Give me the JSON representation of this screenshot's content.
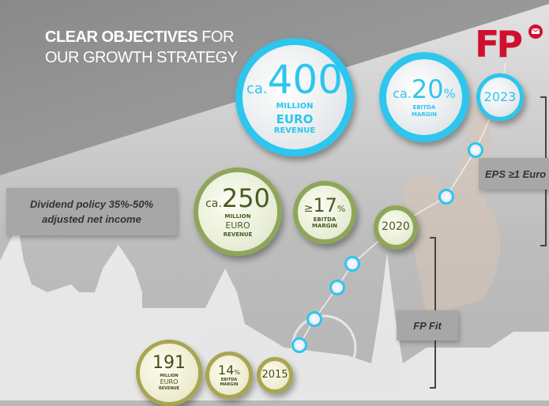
{
  "title": {
    "bold": "CLEAR OBJECTIVES",
    "rest": " FOR",
    "line2": "OUR GROWTH STRATEGY"
  },
  "logo": {
    "text": "FP",
    "icon": "envelope-icon",
    "color": "#d0102e"
  },
  "colors": {
    "blue": "#2cc6ee",
    "green": "#8fa65a",
    "gold": "#a9a650"
  },
  "goals_2023": {
    "revenue": {
      "prefix": "ca.",
      "value": "400",
      "l1": "MILLION",
      "l2": "EURO",
      "l3": "REVENUE"
    },
    "margin": {
      "prefix": "ca.",
      "value": "20",
      "unit": "%",
      "l1": "EBITDA",
      "l2": "MARGIN"
    },
    "year": "2023"
  },
  "goals_2020": {
    "revenue": {
      "prefix": "ca.",
      "value": "250",
      "l1": "MILLION",
      "l2": "EURO",
      "l3": "REVENUE"
    },
    "margin": {
      "prefix": "≥",
      "value": "17",
      "unit": "%",
      "l1": "EBITDA",
      "l2": "MARGIN"
    },
    "year": "2020"
  },
  "status_2015": {
    "revenue": {
      "value": "191",
      "l1": "MILLION",
      "l2": "EURO",
      "l3": "REVENUE"
    },
    "margin": {
      "value": "14",
      "unit": "%",
      "l1": "EBITDA",
      "l2": "MARGIN"
    },
    "year": "2015"
  },
  "dividend": {
    "l1": "Dividend policy 35%-50%",
    "l2": "adjusted net income"
  },
  "eps": "EPS ≥1 Euro",
  "fpfit": "FP Fit"
}
